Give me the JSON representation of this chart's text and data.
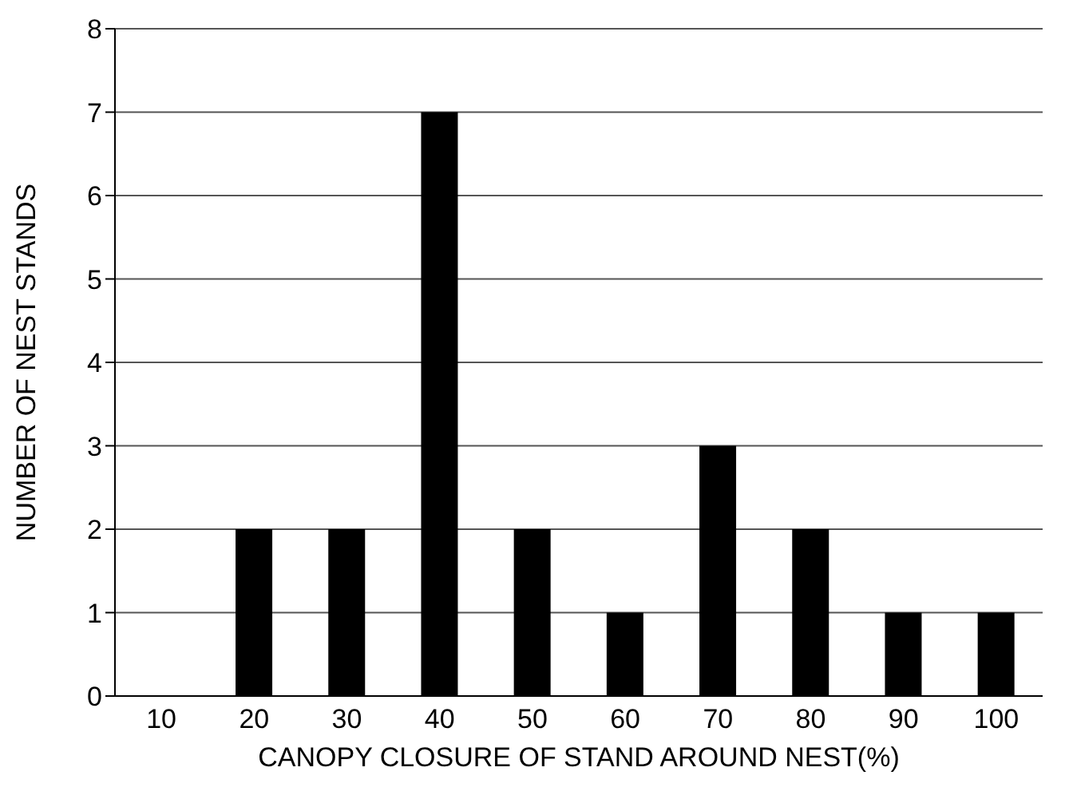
{
  "chart_data": {
    "type": "bar",
    "xlabel": "CANOPY CLOSURE OF STAND AROUND NEST(%)",
    "ylabel": "NUMBER OF NEST STANDS",
    "categories": [
      "10",
      "20",
      "30",
      "40",
      "50",
      "60",
      "70",
      "80",
      "90",
      "100"
    ],
    "values": [
      0,
      2,
      2,
      7,
      2,
      1,
      3,
      2,
      1,
      1
    ],
    "color": "#000000",
    "ylim": [
      0,
      8
    ],
    "yticks": [
      0,
      1,
      2,
      3,
      4,
      5,
      6,
      7,
      8
    ],
    "grid": "y"
  }
}
